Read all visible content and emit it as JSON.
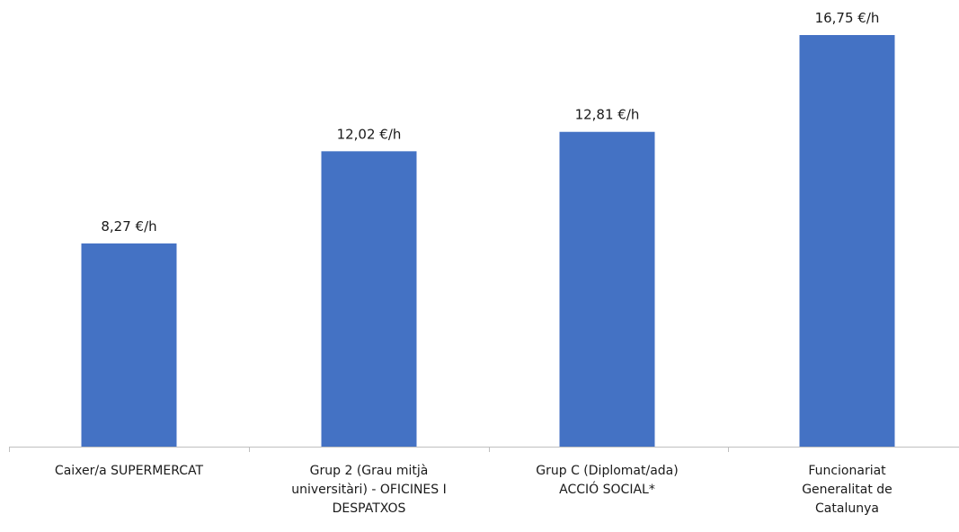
{
  "chart_data": {
    "type": "bar",
    "categories": [
      "Caixer/a SUPERMERCAT",
      "Grup 2 (Grau mitjà\nuniversitàri) - OFICINES I\nDESPATXOS",
      "Grup C (Diplomat/ada)\nACCIÓ SOCIAL*",
      "Funcionariat\nGeneralitat de\nCatalunya"
    ],
    "values": [
      8.27,
      12.02,
      12.81,
      16.75
    ],
    "value_labels": [
      "8,27 €/h",
      "12,02 €/h",
      "12,81 €/h",
      "16,75 €/h"
    ],
    "title": "",
    "xlabel": "",
    "ylabel": "",
    "ylim": [
      0,
      18
    ],
    "bar_color": "#4472C4",
    "axis_color": "#bfbfbf",
    "grid": false
  }
}
